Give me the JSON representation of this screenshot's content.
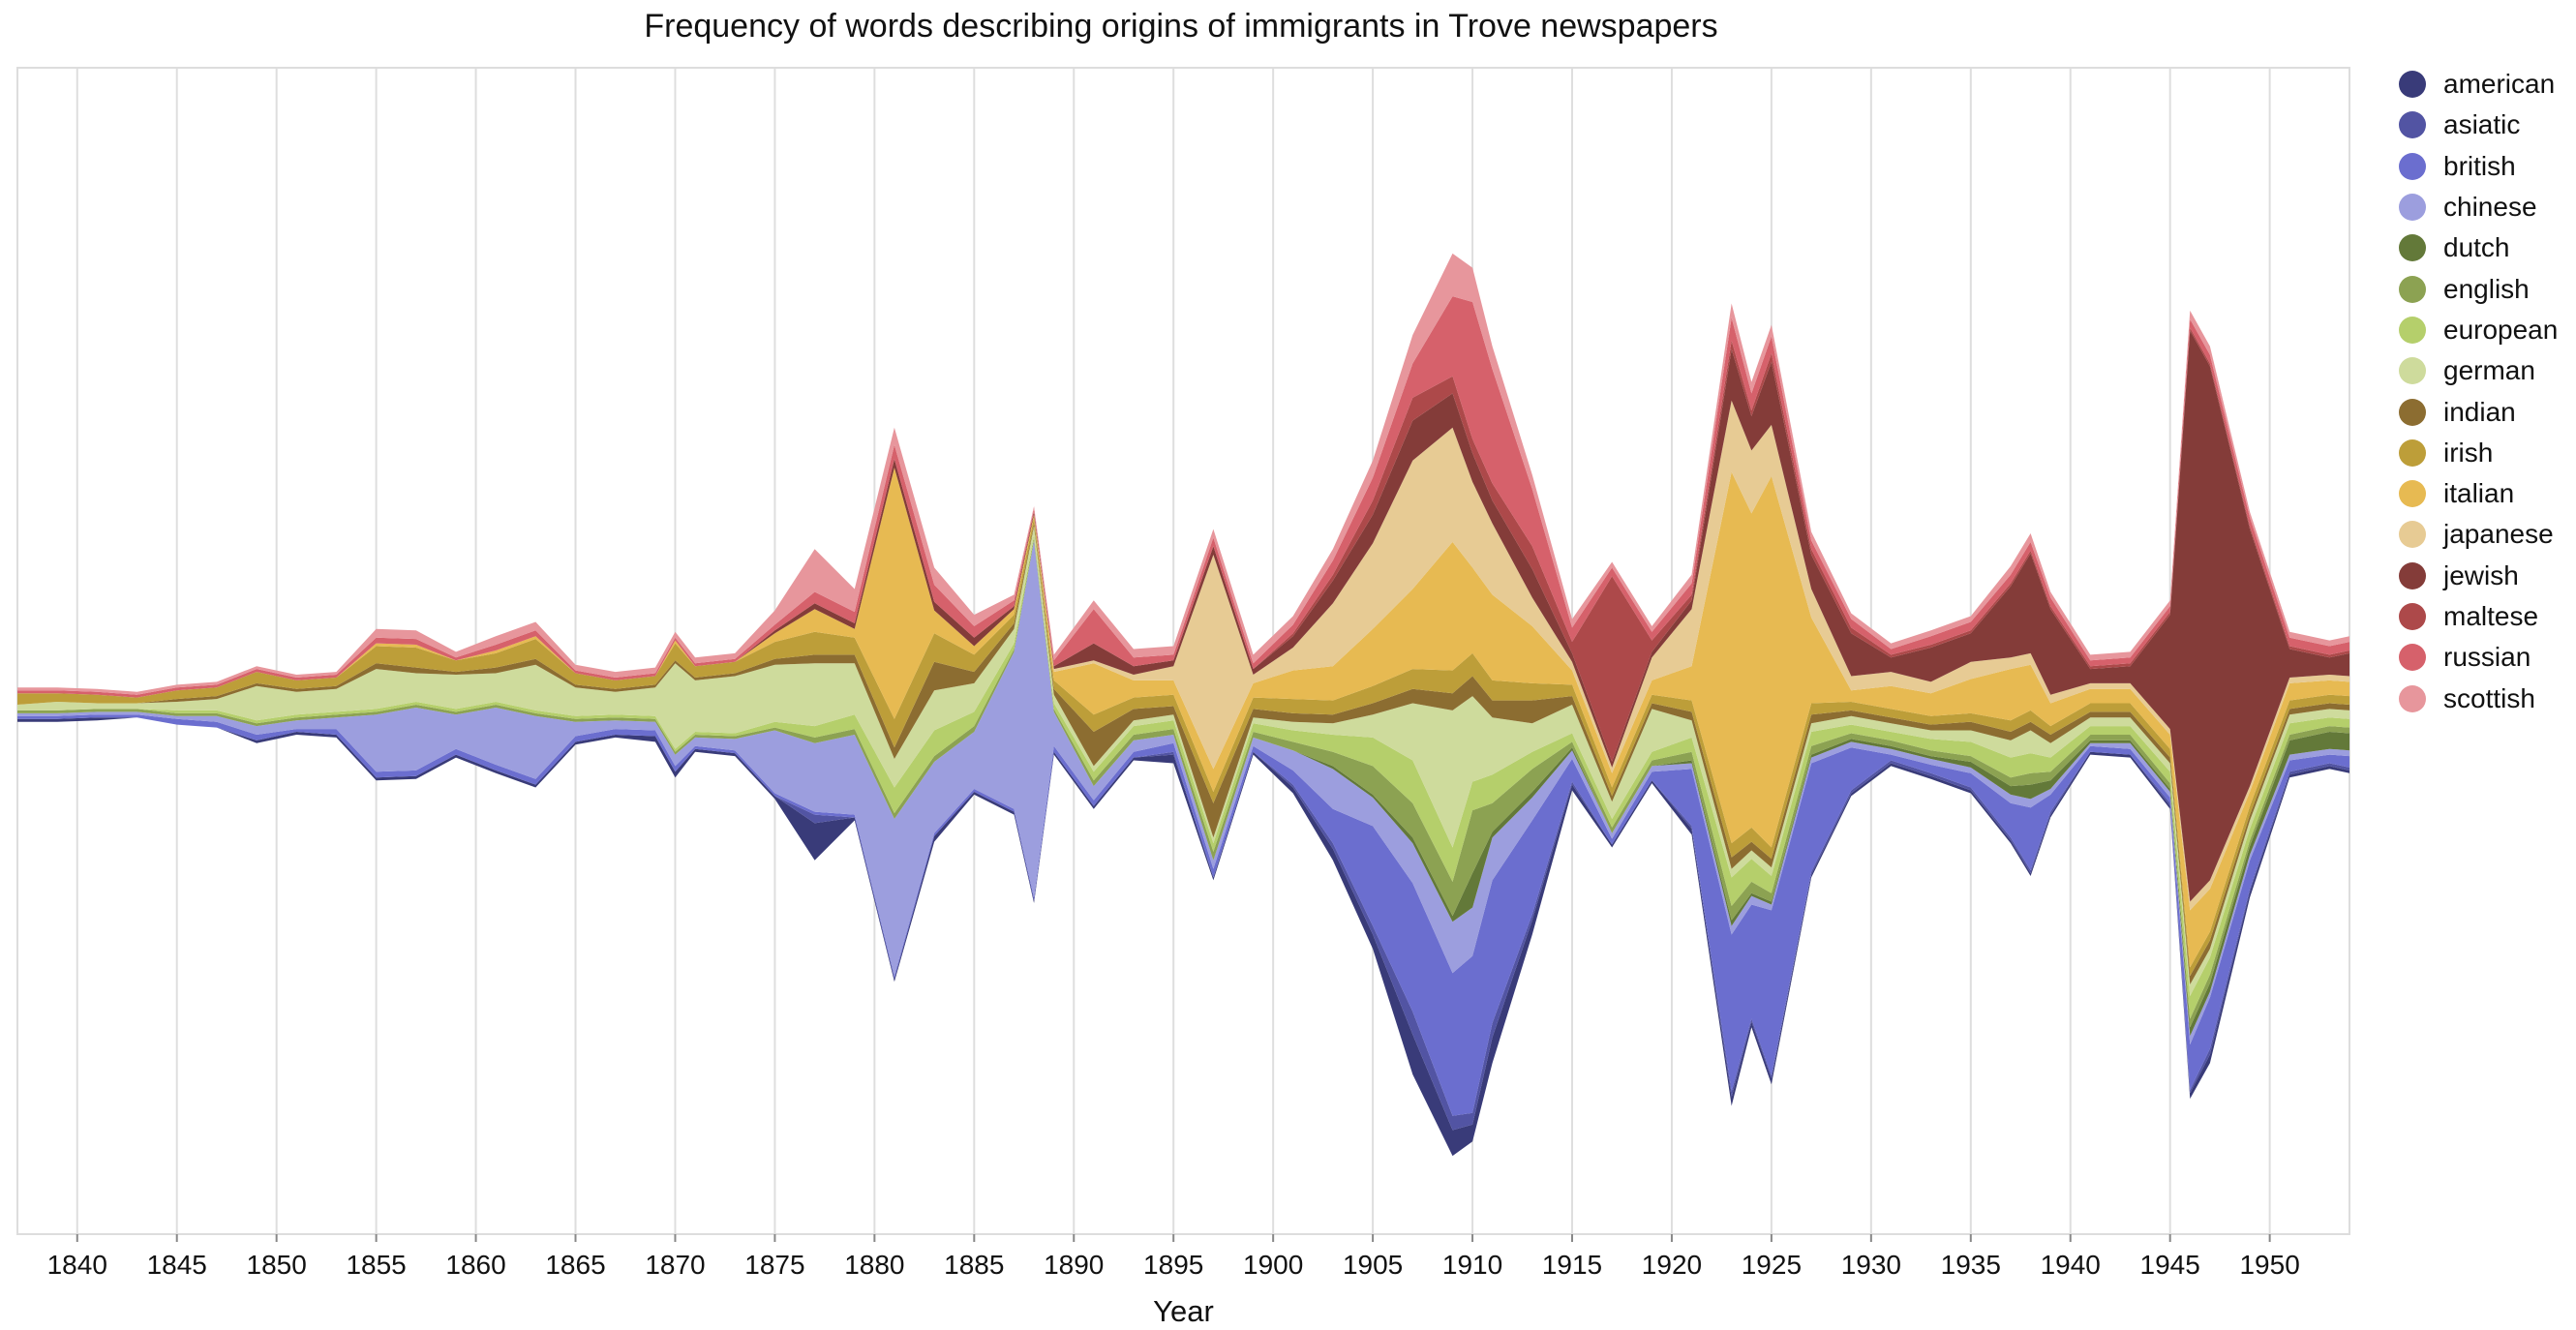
{
  "chart_data": {
    "type": "area",
    "subtype": "streamgraph",
    "title": "Frequency of words describing origins of immigrants in Trove newspapers",
    "xlabel": "Year",
    "ylabel": "",
    "xlim": [
      1837,
      1954
    ],
    "x_ticks": [
      1840,
      1845,
      1850,
      1855,
      1860,
      1865,
      1870,
      1875,
      1880,
      1885,
      1890,
      1895,
      1900,
      1905,
      1910,
      1915,
      1920,
      1925,
      1930,
      1935,
      1940,
      1945,
      1950
    ],
    "grid": "vertical",
    "legend_position": "right",
    "x": [
      1837,
      1839,
      1841,
      1843,
      1845,
      1847,
      1849,
      1851,
      1853,
      1855,
      1857,
      1859,
      1861,
      1863,
      1865,
      1867,
      1869,
      1870,
      1871,
      1873,
      1875,
      1877,
      1879,
      1881,
      1883,
      1885,
      1887,
      1888,
      1889,
      1891,
      1893,
      1895,
      1897,
      1899,
      1901,
      1903,
      1905,
      1907,
      1909,
      1910,
      1911,
      1913,
      1915,
      1917,
      1919,
      1921,
      1923,
      1924,
      1925,
      1927,
      1929,
      1931,
      1933,
      1935,
      1937,
      1938,
      1939,
      1941,
      1943,
      1945,
      1946,
      1947,
      1949,
      1951,
      1953,
      1954
    ],
    "series": [
      {
        "name": "american",
        "color": "#393b79",
        "values": [
          1,
          1,
          1,
          0,
          0,
          0,
          1,
          1,
          1,
          1,
          1,
          1,
          1,
          1,
          1,
          1,
          2,
          2,
          1,
          1,
          1,
          13,
          1,
          1,
          2,
          1,
          1,
          1,
          1,
          1,
          1,
          3,
          1,
          1,
          2,
          4,
          5,
          14,
          9,
          6,
          9,
          5,
          2,
          1,
          1,
          2,
          3,
          2,
          2,
          1,
          1,
          1,
          1,
          1,
          1,
          1,
          1,
          1,
          1,
          1,
          2,
          3,
          2,
          1,
          1,
          1
        ]
      },
      {
        "name": "asiatic",
        "color": "#5254a3",
        "values": [
          0,
          0,
          0,
          0,
          0,
          0,
          0,
          0,
          0,
          0,
          0,
          0,
          0,
          0,
          0,
          0,
          0,
          0,
          0,
          0,
          0,
          3,
          0,
          0,
          0,
          0,
          0,
          0,
          0,
          0,
          0,
          1,
          0,
          0,
          1,
          2,
          3,
          8,
          5,
          4,
          5,
          2,
          1,
          0,
          0,
          1,
          2,
          1,
          1,
          1,
          1,
          1,
          1,
          1,
          1,
          1,
          1,
          0,
          0,
          1,
          1,
          2,
          1,
          1,
          1,
          1
        ]
      },
      {
        "name": "british",
        "color": "#6b6ecf",
        "values": [
          1,
          1,
          1,
          1,
          2,
          2,
          2,
          1,
          2,
          2,
          2,
          2,
          2,
          2,
          2,
          2,
          2,
          2,
          1,
          1,
          1,
          1,
          1,
          1,
          1,
          1,
          1,
          1,
          2,
          2,
          2,
          3,
          3,
          2,
          5,
          12,
          35,
          45,
          50,
          55,
          50,
          33,
          8,
          2,
          3,
          20,
          55,
          40,
          58,
          38,
          15,
          2,
          3,
          5,
          12,
          22,
          6,
          2,
          2,
          2,
          16,
          18,
          10,
          4,
          3,
          4
        ]
      },
      {
        "name": "chinese",
        "color": "#9c9ede",
        "values": [
          1,
          1,
          1,
          1,
          1,
          2,
          3,
          3,
          4,
          20,
          22,
          12,
          20,
          22,
          5,
          3,
          3,
          4,
          3,
          4,
          22,
          24,
          28,
          55,
          25,
          20,
          55,
          125,
          12,
          5,
          4,
          3,
          3,
          3,
          7,
          14,
          10,
          14,
          18,
          17,
          15,
          8,
          3,
          2,
          2,
          2,
          3,
          3,
          2,
          2,
          2,
          2,
          2,
          2,
          3,
          3,
          2,
          1,
          2,
          2,
          3,
          2,
          2,
          2,
          2,
          2
        ]
      },
      {
        "name": "dutch",
        "color": "#637939",
        "values": [
          0,
          0,
          0,
          0,
          0,
          0,
          0,
          0,
          0,
          0,
          0,
          0,
          0,
          0,
          0,
          0,
          0,
          0,
          0,
          0,
          0,
          0,
          0,
          0,
          0,
          0,
          0,
          0,
          0,
          0,
          0,
          0,
          0,
          0,
          0,
          1,
          1,
          2,
          2,
          12,
          2,
          2,
          1,
          0,
          0,
          1,
          2,
          1,
          1,
          1,
          1,
          1,
          1,
          2,
          3,
          5,
          3,
          1,
          1,
          1,
          3,
          3,
          3,
          5,
          6,
          6
        ]
      },
      {
        "name": "english",
        "color": "#8ca252",
        "values": [
          1,
          1,
          1,
          1,
          1,
          1,
          1,
          1,
          1,
          1,
          1,
          1,
          1,
          1,
          1,
          1,
          1,
          1,
          1,
          1,
          1,
          2,
          2,
          2,
          2,
          2,
          1,
          1,
          1,
          2,
          2,
          2,
          3,
          2,
          3,
          5,
          10,
          12,
          12,
          22,
          10,
          8,
          2,
          2,
          2,
          3,
          5,
          4,
          3,
          3,
          2,
          2,
          2,
          2,
          3,
          4,
          3,
          2,
          2,
          2,
          3,
          3,
          2,
          2,
          2,
          2
        ]
      },
      {
        "name": "european",
        "color": "#b5cf6b",
        "values": [
          0,
          0,
          0,
          0,
          1,
          1,
          1,
          1,
          1,
          1,
          1,
          1,
          1,
          1,
          1,
          1,
          1,
          1,
          1,
          1,
          2,
          4,
          5,
          9,
          9,
          5,
          2,
          1,
          2,
          3,
          3,
          3,
          3,
          3,
          4,
          6,
          10,
          15,
          12,
          10,
          10,
          6,
          3,
          3,
          3,
          5,
          10,
          8,
          6,
          5,
          3,
          3,
          4,
          5,
          7,
          7,
          5,
          3,
          3,
          4,
          8,
          6,
          4,
          4,
          3,
          3
        ]
      },
      {
        "name": "german",
        "color": "#cedb9c",
        "values": [
          2,
          3,
          2,
          2,
          3,
          4,
          12,
          8,
          8,
          14,
          10,
          12,
          10,
          16,
          10,
          8,
          10,
          30,
          18,
          20,
          20,
          22,
          18,
          10,
          14,
          10,
          5,
          3,
          3,
          2,
          2,
          2,
          2,
          2,
          3,
          4,
          8,
          20,
          48,
          30,
          20,
          10,
          10,
          6,
          15,
          6,
          3,
          3,
          3,
          3,
          3,
          3,
          3,
          4,
          6,
          8,
          5,
          3,
          3,
          3,
          4,
          3,
          3,
          3,
          3,
          3
        ]
      },
      {
        "name": "indian",
        "color": "#8c6d31",
        "values": [
          0,
          0,
          0,
          0,
          1,
          1,
          1,
          1,
          1,
          2,
          2,
          1,
          2,
          2,
          1,
          1,
          1,
          1,
          1,
          1,
          2,
          3,
          3,
          4,
          10,
          4,
          2,
          1,
          2,
          12,
          4,
          3,
          12,
          3,
          3,
          3,
          4,
          5,
          6,
          7,
          6,
          8,
          3,
          2,
          2,
          3,
          4,
          3,
          3,
          3,
          2,
          2,
          2,
          3,
          3,
          3,
          3,
          2,
          2,
          2,
          3,
          3,
          2,
          2,
          2,
          2
        ]
      },
      {
        "name": "irish",
        "color": "#bd9e39",
        "values": [
          4,
          3,
          3,
          2,
          3,
          3,
          4,
          3,
          3,
          6,
          7,
          4,
          5,
          7,
          4,
          3,
          3,
          6,
          4,
          4,
          6,
          8,
          6,
          10,
          10,
          6,
          3,
          2,
          3,
          6,
          4,
          4,
          4,
          4,
          5,
          5,
          6,
          7,
          8,
          8,
          7,
          6,
          4,
          3,
          3,
          4,
          5,
          5,
          4,
          4,
          3,
          3,
          3,
          3,
          4,
          4,
          3,
          3,
          3,
          3,
          3,
          3,
          3,
          3,
          3,
          3
        ]
      },
      {
        "name": "italian",
        "color": "#e7ba52",
        "values": [
          0,
          0,
          0,
          0,
          0,
          0,
          0,
          0,
          0,
          1,
          1,
          0,
          1,
          1,
          0,
          0,
          0,
          1,
          0,
          0,
          3,
          8,
          3,
          88,
          8,
          3,
          2,
          1,
          3,
          18,
          6,
          5,
          8,
          5,
          10,
          12,
          20,
          28,
          45,
          30,
          30,
          20,
          5,
          5,
          5,
          12,
          130,
          110,
          130,
          30,
          4,
          8,
          8,
          12,
          18,
          16,
          8,
          5,
          5,
          5,
          20,
          15,
          5,
          6,
          5,
          5
        ]
      },
      {
        "name": "japanese",
        "color": "#e7cb94",
        "values": [
          0,
          0,
          0,
          0,
          0,
          0,
          0,
          0,
          0,
          0,
          0,
          0,
          0,
          0,
          0,
          0,
          0,
          0,
          0,
          0,
          0,
          0,
          0,
          0,
          0,
          0,
          0,
          0,
          1,
          1,
          2,
          5,
          75,
          3,
          8,
          22,
          30,
          45,
          40,
          30,
          25,
          10,
          3,
          2,
          8,
          20,
          25,
          22,
          18,
          10,
          5,
          5,
          4,
          6,
          4,
          4,
          3,
          2,
          2,
          2,
          3,
          3,
          2,
          2,
          2,
          2
        ]
      },
      {
        "name": "jewish",
        "color": "#843c39",
        "values": [
          0,
          0,
          0,
          0,
          0,
          0,
          0,
          0,
          0,
          0,
          0,
          0,
          0,
          0,
          0,
          0,
          0,
          0,
          0,
          0,
          1,
          2,
          2,
          3,
          3,
          3,
          1,
          1,
          1,
          6,
          3,
          2,
          3,
          2,
          4,
          8,
          10,
          14,
          12,
          10,
          8,
          10,
          3,
          2,
          2,
          3,
          18,
          12,
          22,
          12,
          15,
          5,
          12,
          10,
          25,
          35,
          30,
          5,
          6,
          40,
          200,
          180,
          90,
          10,
          6,
          8
        ]
      },
      {
        "name": "maltese",
        "color": "#ad494a",
        "values": [
          0,
          0,
          0,
          0,
          0,
          0,
          0,
          0,
          0,
          0,
          0,
          0,
          0,
          0,
          0,
          0,
          0,
          0,
          0,
          0,
          0,
          0,
          0,
          0,
          0,
          0,
          0,
          0,
          0,
          0,
          0,
          0,
          0,
          0,
          1,
          2,
          5,
          8,
          6,
          5,
          6,
          8,
          4,
          65,
          4,
          2,
          3,
          2,
          3,
          2,
          2,
          1,
          1,
          1,
          1,
          1,
          1,
          1,
          1,
          1,
          1,
          1,
          1,
          1,
          1,
          1
        ]
      },
      {
        "name": "russian",
        "color": "#d6616b",
        "values": [
          1,
          1,
          1,
          1,
          1,
          1,
          1,
          1,
          1,
          2,
          2,
          1,
          2,
          2,
          1,
          1,
          1,
          1,
          1,
          1,
          2,
          4,
          4,
          5,
          6,
          4,
          2,
          1,
          2,
          12,
          3,
          2,
          3,
          2,
          3,
          5,
          8,
          12,
          28,
          48,
          40,
          20,
          5,
          3,
          3,
          4,
          8,
          6,
          6,
          3,
          3,
          2,
          3,
          3,
          3,
          3,
          3,
          2,
          2,
          2,
          3,
          3,
          3,
          3,
          3,
          3
        ]
      },
      {
        "name": "scottish",
        "color": "#e7969c",
        "values": [
          1,
          1,
          1,
          1,
          1,
          1,
          1,
          1,
          1,
          3,
          3,
          2,
          3,
          3,
          2,
          2,
          2,
          2,
          2,
          2,
          5,
          15,
          8,
          6,
          6,
          4,
          2,
          1,
          2,
          3,
          3,
          3,
          3,
          3,
          3,
          4,
          6,
          10,
          15,
          12,
          8,
          5,
          3,
          2,
          2,
          3,
          5,
          4,
          4,
          3,
          2,
          2,
          2,
          2,
          3,
          3,
          2,
          2,
          2,
          2,
          3,
          3,
          2,
          2,
          2,
          2
        ]
      }
    ]
  }
}
